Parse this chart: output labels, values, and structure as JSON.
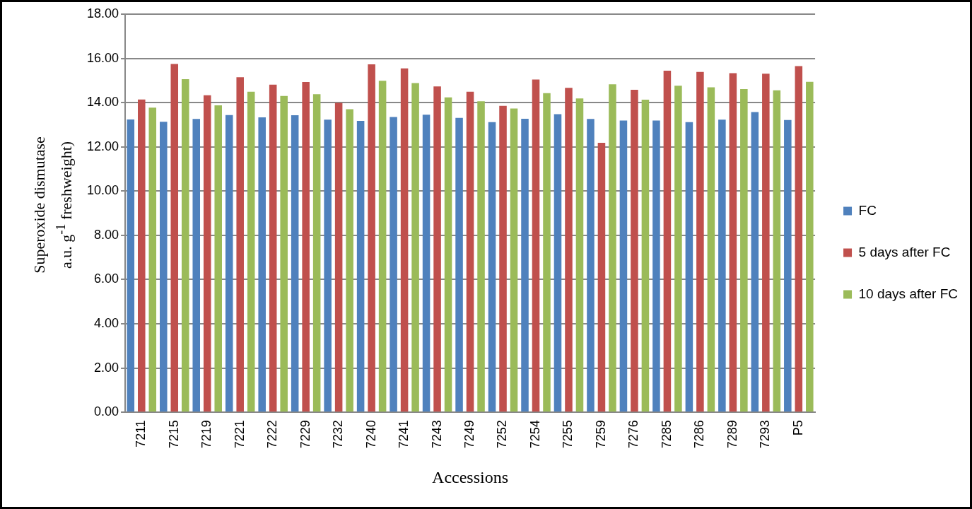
{
  "chart_data": {
    "type": "bar",
    "xlabel": "Accessions",
    "ylabel": "Superoxide dismutase\na.u. g$^{-1}$ freshweight)",
    "categories": [
      "7211",
      "7215",
      "7219",
      "7221",
      "7222",
      "7229",
      "7232",
      "7240",
      "7241",
      "7243",
      "7249",
      "7252",
      "7254",
      "7255",
      "7259",
      "7276",
      "7285",
      "7286",
      "7289",
      "7293",
      "P5"
    ],
    "series": [
      {
        "name": "FC",
        "color": "#4f81bd",
        "values": [
          13.24,
          13.13,
          13.26,
          13.44,
          13.33,
          13.43,
          13.23,
          13.17,
          13.35,
          13.45,
          13.31,
          13.12,
          13.27,
          13.48,
          13.26,
          13.19,
          13.19,
          13.12,
          13.23,
          13.57,
          13.21
        ]
      },
      {
        "name": "5 days after FC",
        "color": "#c0504d",
        "values": [
          14.14,
          15.75,
          14.33,
          15.15,
          14.81,
          14.93,
          13.99,
          15.73,
          15.55,
          14.73,
          14.49,
          13.85,
          15.04,
          14.67,
          12.18,
          14.58,
          15.44,
          15.39,
          15.33,
          15.31,
          15.65
        ]
      },
      {
        "name": "10 days after FC",
        "color": "#9bbb59",
        "values": [
          13.77,
          15.06,
          13.88,
          14.49,
          14.3,
          14.38,
          13.7,
          14.99,
          14.88,
          14.24,
          14.06,
          13.73,
          14.43,
          14.19,
          14.83,
          14.13,
          14.76,
          14.69,
          14.61,
          14.56,
          14.94
        ]
      }
    ],
    "ylim": [
      0,
      18
    ],
    "yticks": [
      {
        "value": 0,
        "label": "0.00"
      },
      {
        "value": 2,
        "label": "2.00"
      },
      {
        "value": 4,
        "label": "4.00"
      },
      {
        "value": 6,
        "label": "6.00"
      },
      {
        "value": 8,
        "label": "8.00"
      },
      {
        "value": 10,
        "label": "10.00"
      },
      {
        "value": 12,
        "label": "12.00"
      },
      {
        "value": 14,
        "label": "14.00"
      },
      {
        "value": 16,
        "label": "16.00"
      },
      {
        "value": 18,
        "label": "18.00"
      }
    ],
    "grid": "y",
    "legend": "right"
  }
}
